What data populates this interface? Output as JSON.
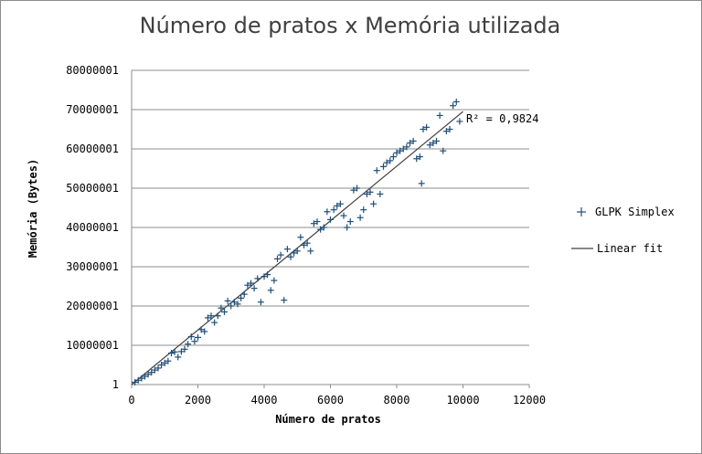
{
  "chart_data": {
    "type": "scatter",
    "title": "Número de pratos x Memória utilizada",
    "xlabel": "Número de pratos",
    "ylabel": "Memória (Bytes)",
    "xlim": [
      0,
      12000
    ],
    "ylim": [
      1,
      80000001
    ],
    "x_ticks": [
      "0",
      "2000",
      "4000",
      "6000",
      "8000",
      "10000",
      "12000"
    ],
    "y_ticks": [
      "1",
      "10000001",
      "20000001",
      "30000001",
      "40000001",
      "50000001",
      "60000001",
      "70000001",
      "80000001"
    ],
    "grid": "horizontal",
    "legend_position": "right",
    "annotation": "R² = 0,9824",
    "colors": {
      "points": "#1f4e79",
      "fit": "#404040"
    },
    "series": [
      {
        "name": "GLPK Simplex",
        "marker": "+",
        "points": [
          [
            100,
            600000
          ],
          [
            200,
            1100000
          ],
          [
            300,
            1600000
          ],
          [
            400,
            2100000
          ],
          [
            500,
            2600000
          ],
          [
            600,
            3100000
          ],
          [
            700,
            3700000
          ],
          [
            800,
            4200000
          ],
          [
            900,
            5000000
          ],
          [
            1000,
            5500000
          ],
          [
            1100,
            6000000
          ],
          [
            1200,
            8000000
          ],
          [
            1300,
            8300000
          ],
          [
            1400,
            7000000
          ],
          [
            1500,
            8400000
          ],
          [
            1600,
            9000000
          ],
          [
            1700,
            10300000
          ],
          [
            1800,
            12200000
          ],
          [
            1900,
            11000000
          ],
          [
            2000,
            12000000
          ],
          [
            2100,
            14000000
          ],
          [
            2200,
            13500000
          ],
          [
            2300,
            17000000
          ],
          [
            2400,
            17500000
          ],
          [
            2500,
            15800000
          ],
          [
            2600,
            17500000
          ],
          [
            2700,
            19500000
          ],
          [
            2800,
            18500000
          ],
          [
            2900,
            21300000
          ],
          [
            3000,
            20000000
          ],
          [
            3100,
            21000000
          ],
          [
            3200,
            20500000
          ],
          [
            3300,
            22000000
          ],
          [
            3400,
            23000000
          ],
          [
            3500,
            25300000
          ],
          [
            3600,
            25800000
          ],
          [
            3700,
            24500000
          ],
          [
            3800,
            27000000
          ],
          [
            3900,
            21000000
          ],
          [
            4000,
            27500000
          ],
          [
            4100,
            28000000
          ],
          [
            4200,
            24000000
          ],
          [
            4300,
            26500000
          ],
          [
            4400,
            32000000
          ],
          [
            4500,
            33000000
          ],
          [
            4600,
            21500000
          ],
          [
            4700,
            34500000
          ],
          [
            4800,
            32500000
          ],
          [
            4900,
            33500000
          ],
          [
            5000,
            34000000
          ],
          [
            5100,
            37500000
          ],
          [
            5200,
            35500000
          ],
          [
            5300,
            36000000
          ],
          [
            5400,
            34000000
          ],
          [
            5500,
            41000000
          ],
          [
            5600,
            41500000
          ],
          [
            5700,
            39500000
          ],
          [
            5800,
            40000000
          ],
          [
            5900,
            44000000
          ],
          [
            6000,
            42000000
          ],
          [
            6100,
            44500000
          ],
          [
            6200,
            45500000
          ],
          [
            6300,
            46000000
          ],
          [
            6400,
            43000000
          ],
          [
            6500,
            40000000
          ],
          [
            6600,
            41500000
          ],
          [
            6700,
            49500000
          ],
          [
            6800,
            50000000
          ],
          [
            6900,
            42500000
          ],
          [
            7000,
            44500000
          ],
          [
            7100,
            48500000
          ],
          [
            7200,
            49000000
          ],
          [
            7300,
            46000000
          ],
          [
            7400,
            54500000
          ],
          [
            7500,
            48500000
          ],
          [
            7600,
            55500000
          ],
          [
            7700,
            56500000
          ],
          [
            7800,
            57000000
          ],
          [
            7900,
            58000000
          ],
          [
            8000,
            59000000
          ],
          [
            8100,
            59500000
          ],
          [
            8200,
            60000000
          ],
          [
            8300,
            60500000
          ],
          [
            8400,
            61500000
          ],
          [
            8500,
            62000000
          ],
          [
            8600,
            57500000
          ],
          [
            8700,
            58000000
          ],
          [
            8750,
            51200000
          ],
          [
            8800,
            65000000
          ],
          [
            8900,
            65500000
          ],
          [
            9000,
            61000000
          ],
          [
            9100,
            61500000
          ],
          [
            9200,
            62000000
          ],
          [
            9300,
            68500000
          ],
          [
            9400,
            59500000
          ],
          [
            9500,
            64500000
          ],
          [
            9600,
            65000000
          ],
          [
            9700,
            71000000
          ],
          [
            9800,
            72000000
          ],
          [
            9900,
            67000000
          ]
        ]
      },
      {
        "name": "Linear fit",
        "line": [
          [
            0,
            1
          ],
          [
            10000,
            69500000
          ]
        ]
      }
    ]
  }
}
